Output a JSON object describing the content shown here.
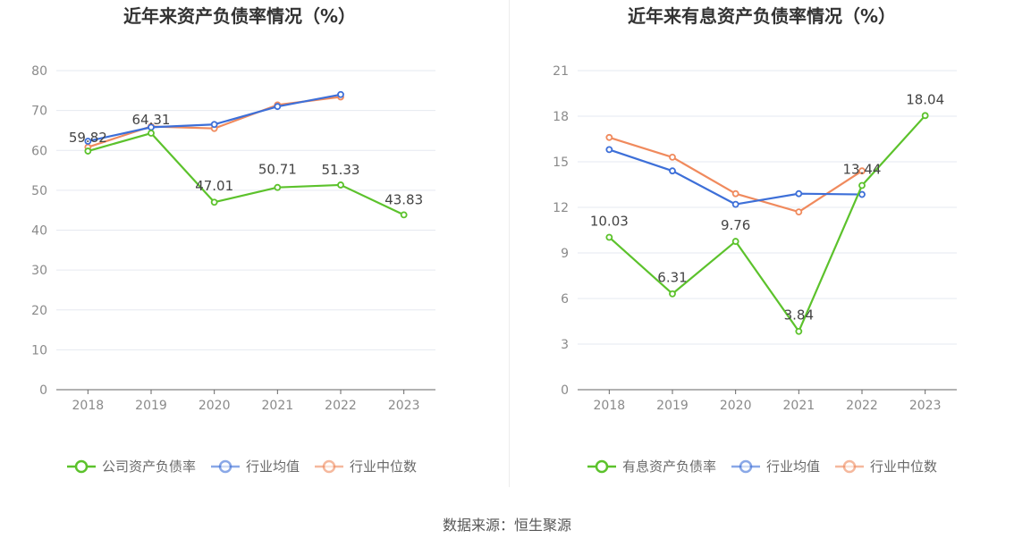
{
  "source": "数据来源：恒生聚源",
  "colors": {
    "company": "#5cc22c",
    "industry_avg": "#3d6fd8",
    "industry_median": "#f08a5d",
    "grid": "#e6e9f0",
    "axis": "#666666"
  },
  "chart_data": [
    {
      "type": "line",
      "title": "近年来资产负债率情况（%）",
      "categories": [
        "2018",
        "2019",
        "2020",
        "2021",
        "2022",
        "2023"
      ],
      "ylim": [
        0,
        80
      ],
      "yticks": [
        0,
        10,
        20,
        30,
        40,
        50,
        60,
        70,
        80
      ],
      "grid": true,
      "legend_position": "bottom",
      "series": [
        {
          "name": "公司资产负债率",
          "color": "#5cc22c",
          "values": [
            59.82,
            64.31,
            47.01,
            50.71,
            51.33,
            43.83
          ],
          "labels": [
            "59.82",
            "64.31",
            "47.01",
            "50.71",
            "51.33",
            "43.83"
          ]
        },
        {
          "name": "行业均值",
          "color": "#3d6fd8",
          "values": [
            62.3,
            65.8,
            66.5,
            71.0,
            74.0,
            null
          ]
        },
        {
          "name": "行业中位数",
          "color": "#f08a5d",
          "values": [
            60.8,
            66.0,
            65.5,
            71.4,
            73.4,
            null
          ]
        }
      ]
    },
    {
      "type": "line",
      "title": "近年来有息资产负债率情况（%）",
      "categories": [
        "2018",
        "2019",
        "2020",
        "2021",
        "2022",
        "2023"
      ],
      "ylim": [
        0,
        21
      ],
      "yticks": [
        0,
        3,
        6,
        9,
        12,
        15,
        18,
        21
      ],
      "grid": true,
      "legend_position": "bottom",
      "series": [
        {
          "name": "有息资产负债率",
          "color": "#5cc22c",
          "values": [
            10.03,
            6.31,
            9.76,
            3.84,
            13.44,
            18.04
          ],
          "labels": [
            "10.03",
            "6.31",
            "9.76",
            "3.84",
            "13.44",
            "18.04"
          ]
        },
        {
          "name": "行业均值",
          "color": "#3d6fd8",
          "values": [
            15.8,
            14.4,
            12.2,
            12.9,
            12.85,
            null
          ]
        },
        {
          "name": "行业中位数",
          "color": "#f08a5d",
          "values": [
            16.6,
            15.3,
            12.9,
            11.7,
            14.4,
            null
          ]
        }
      ]
    }
  ]
}
